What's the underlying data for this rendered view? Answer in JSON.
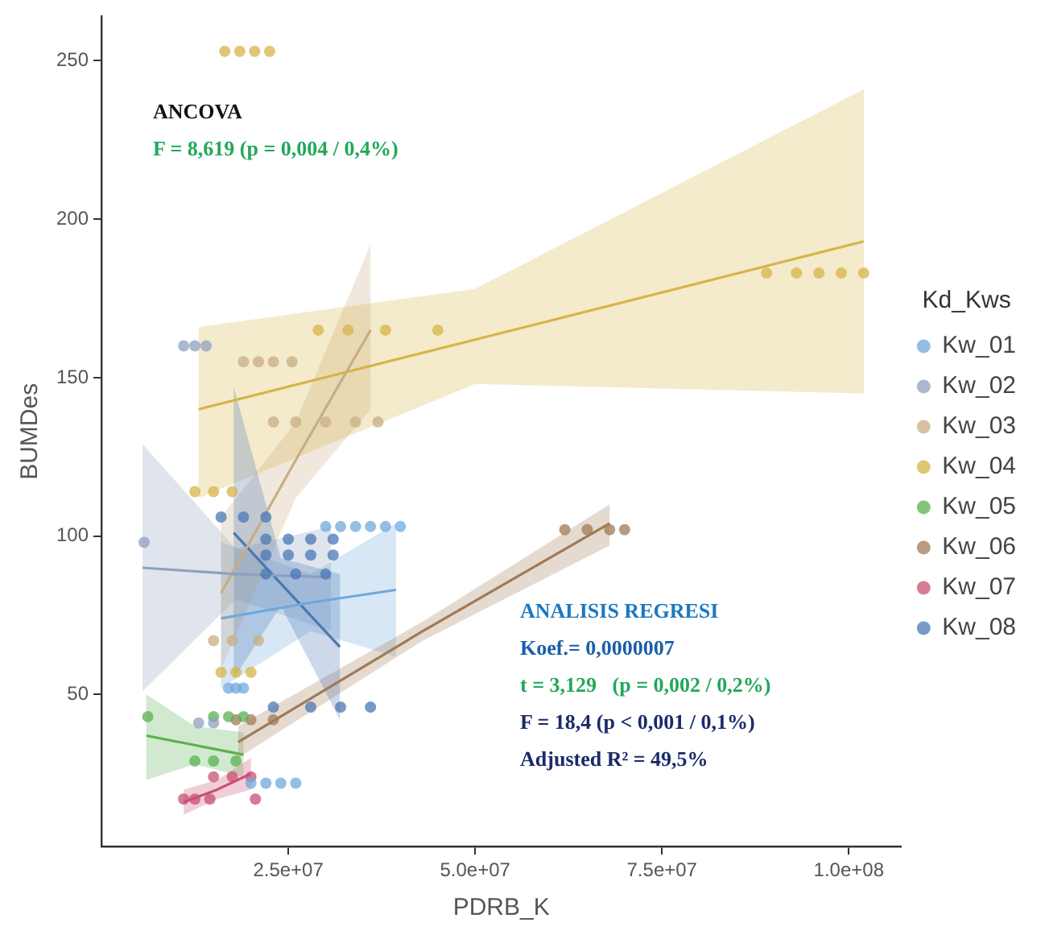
{
  "chart_data": {
    "type": "scatter",
    "xlabel": "PDRB_K",
    "ylabel": "BUMDes",
    "legend_title": "Kd_Kws",
    "legend": "right",
    "grid": false,
    "marker": "circle",
    "xlim": [
      0,
      107000000.0
    ],
    "ylim": [
      2,
      264
    ],
    "xticks": [
      {
        "value": 25000000.0,
        "label": "2.5e+07"
      },
      {
        "value": 50000000.0,
        "label": "5.0e+07"
      },
      {
        "value": 75000000.0,
        "label": "7.5e+07"
      },
      {
        "value": 100000000.0,
        "label": "1.0e+08"
      }
    ],
    "yticks": [
      50,
      100,
      150,
      200,
      250
    ],
    "annotations": [
      "ANCOVA",
      "F = 8,619 (p = 0,004 / 0,4%)",
      "ANALISIS REGRESI",
      "Koef.= 0,0000007",
      "t = 3,129   (p = 0,002 / 0,2%)",
      "F = 18,4 (p < 0,001 / 0,1%)",
      "Adjusted R² = 49,5%"
    ],
    "series": [
      {
        "name": "Kw_01",
        "color": "#6fa8dc",
        "x": [
          30000000.0,
          32000000.0,
          34000000.0,
          36000000.0,
          38000000.0,
          40000000.0,
          17000000.0,
          18000000.0,
          19000000.0,
          20000000.0,
          22000000.0,
          24000000.0,
          26000000.0
        ],
        "values": [
          103,
          103,
          103,
          103,
          103,
          103,
          52,
          52,
          52,
          22,
          22,
          22,
          22
        ]
      },
      {
        "name": "Kw_02",
        "color": "#8fa0c0",
        "x": [
          5700000.0,
          11000000.0,
          12500000.0,
          14000000.0,
          13000000.0,
          15000000.0
        ],
        "values": [
          98,
          160,
          160,
          160,
          41,
          41
        ]
      },
      {
        "name": "Kw_03",
        "color": "#c8ad84",
        "x": [
          19000000.0,
          21000000.0,
          23000000.0,
          25500000.0,
          23000000.0,
          26000000.0,
          30000000.0,
          34000000.0,
          37000000.0,
          15000000.0,
          17500000.0,
          21000000.0
        ],
        "values": [
          155,
          155,
          155,
          155,
          136,
          136,
          136,
          136,
          136,
          67,
          67,
          67
        ]
      },
      {
        "name": "Kw_04",
        "color": "#d6b447",
        "x": [
          16500000.0,
          18500000.0,
          20500000.0,
          22500000.0,
          89000000.0,
          93000000.0,
          96000000.0,
          99000000.0,
          102000000.0,
          12500000.0,
          15000000.0,
          17500000.0,
          16000000.0,
          18000000.0,
          20000000.0,
          29000000.0,
          33000000.0,
          38000000.0,
          45000000.0
        ],
        "values": [
          253,
          253,
          253,
          253,
          183,
          183,
          183,
          183,
          183,
          114,
          114,
          114,
          57,
          57,
          57,
          165,
          165,
          165,
          165
        ]
      },
      {
        "name": "Kw_05",
        "color": "#5ab050",
        "x": [
          6200000.0,
          15000000.0,
          17000000.0,
          19000000.0,
          12500000.0,
          15000000.0,
          18000000.0
        ],
        "values": [
          43,
          43,
          43,
          43,
          29,
          29,
          29
        ]
      },
      {
        "name": "Kw_06",
        "color": "#a07a55",
        "x": [
          62000000.0,
          65000000.0,
          68000000.0,
          70000000.0,
          18000000.0,
          20000000.0,
          23000000.0
        ],
        "values": [
          102,
          102,
          102,
          102,
          42,
          42,
          42
        ]
      },
      {
        "name": "Kw_07",
        "color": "#c85070",
        "x": [
          11000000.0,
          12500000.0,
          14500000.0,
          20600000.0,
          15000000.0,
          17500000.0,
          20000000.0
        ],
        "values": [
          17,
          17,
          17,
          17,
          24,
          24,
          24
        ]
      },
      {
        "name": "Kw_08",
        "color": "#4a78b5",
        "x": [
          22000000.0,
          25000000.0,
          28000000.0,
          31000000.0,
          22000000.0,
          25000000.0,
          28000000.0,
          31000000.0,
          22000000.0,
          26000000.0,
          30000000.0,
          23000000.0,
          28000000.0,
          32000000.0,
          36000000.0,
          16000000.0,
          19000000.0,
          22000000.0
        ],
        "values": [
          99,
          99,
          99,
          99,
          94,
          94,
          94,
          94,
          88,
          88,
          88,
          46,
          46,
          46,
          46,
          106,
          106,
          106
        ]
      },
      {
        "type": "line",
        "marker": "none",
        "color": "#6fa8dc",
        "x": [
          16000000.0,
          28000000.0,
          39400000.0
        ],
        "values": [
          74,
          79,
          83
        ],
        "lower": [
          52,
          70,
          62
        ],
        "upper": [
          98,
          88,
          104
        ]
      },
      {
        "type": "line",
        "marker": "none",
        "color": "#8fa0c0",
        "x": [
          5500000.0,
          18000000.0,
          30700000.0
        ],
        "values": [
          90,
          88,
          87
        ],
        "lower": [
          51,
          80,
          70
        ],
        "upper": [
          129,
          96,
          103
        ]
      },
      {
        "type": "line",
        "marker": "none",
        "color": "#c8ad84",
        "x": [
          16000000.0,
          26000000.0,
          36000000.0
        ],
        "values": [
          82,
          124,
          165
        ],
        "lower": [
          58,
          112,
          140
        ],
        "upper": [
          106,
          136,
          192
        ]
      },
      {
        "type": "line",
        "marker": "none",
        "color": "#d6b447",
        "x": [
          13000000.0,
          50000000.0,
          102000000.0
        ],
        "values": [
          140,
          162,
          193
        ],
        "lower": [
          112,
          148,
          145
        ],
        "upper": [
          166,
          178,
          241
        ]
      },
      {
        "type": "line",
        "marker": "none",
        "color": "#5ab050",
        "x": [
          6000000.0,
          12500000.0,
          19000000.0
        ],
        "values": [
          37,
          34,
          31
        ],
        "lower": [
          23,
          28,
          24
        ],
        "upper": [
          50,
          40,
          38
        ]
      },
      {
        "type": "line",
        "marker": "none",
        "color": "#a07a55",
        "x": [
          18300000.0,
          43000000.0,
          68000000.0
        ],
        "values": [
          35,
          70,
          104
        ],
        "lower": [
          30,
          67,
          97
        ],
        "upper": [
          40,
          73,
          110
        ]
      },
      {
        "type": "line",
        "marker": "none",
        "color": "#c85070",
        "x": [
          11000000.0,
          15500000.0,
          20000000.0
        ],
        "values": [
          16,
          20,
          25
        ],
        "lower": [
          12,
          17,
          20
        ],
        "upper": [
          20,
          23,
          30
        ]
      },
      {
        "type": "line",
        "marker": "none",
        "color": "#4a78b5",
        "x": [
          17700000.0,
          24000000.0,
          31900000.0
        ],
        "values": [
          101,
          85,
          65
        ],
        "lower": [
          55,
          78,
          42
        ],
        "upper": [
          147,
          93,
          88
        ]
      }
    ]
  }
}
